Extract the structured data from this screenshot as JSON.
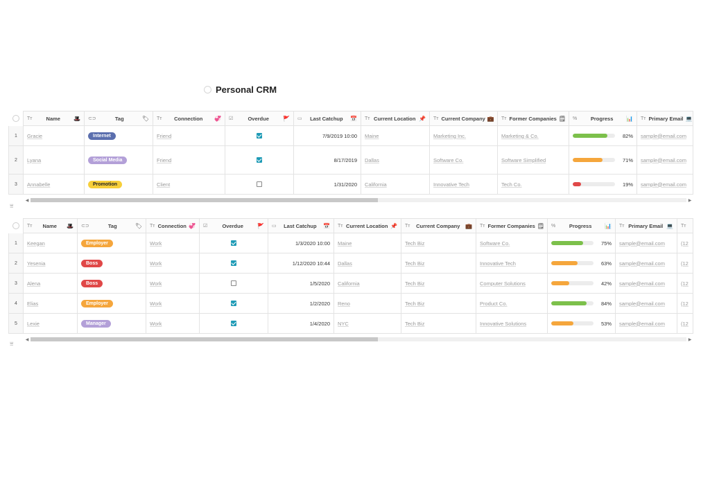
{
  "title": "Personal CRM",
  "table1": {
    "columns": [
      {
        "icon": "Tт",
        "label": "Name",
        "emoji": "🎩",
        "w": 88
      },
      {
        "icon": "⊂⊃",
        "label": "Tag",
        "emoji": "🏷",
        "w": 99
      },
      {
        "icon": "Tт",
        "label": "Connection",
        "emoji": "💞",
        "w": 104
      },
      {
        "icon": "☑",
        "label": "Overdue",
        "emoji": "🚩",
        "w": 99
      },
      {
        "icon": "▭",
        "label": "Last Catchup",
        "emoji": "📅",
        "w": 97
      },
      {
        "icon": "Tт",
        "label": "Current Location",
        "emoji": "📌",
        "w": 99
      },
      {
        "icon": "Tт",
        "label": "Current Company",
        "emoji": "💼",
        "w": 98
      },
      {
        "icon": "Tт",
        "label": "Former Companies",
        "emoji": "🗒",
        "w": 103
      },
      {
        "icon": "%",
        "label": "Progress",
        "emoji": "📊",
        "w": 98
      },
      {
        "icon": "Tт",
        "label": "Primary Email",
        "emoji": "💻",
        "w": 81
      }
    ],
    "rows": [
      {
        "idx": "1",
        "name": "Gracie",
        "tag": "Internet",
        "tag_color": "#5b6fae",
        "tag_text": "#ffffff",
        "connection": "Friend",
        "overdue": true,
        "catchup": "7/9/2019 10:00",
        "location": "Maine",
        "company": "Marketing Inc.",
        "former": "Marketing & Co.",
        "progress": 82,
        "progress_label": "82%",
        "progress_color": "#7cc04b",
        "email": "sample@email.com",
        "h": 29
      },
      {
        "idx": "2",
        "name": "Lyana",
        "tag": "Social Media",
        "tag_color": "#b3a0d8",
        "tag_text": "#ffffff",
        "connection": "Friend",
        "overdue": true,
        "catchup": "8/17/2019",
        "location": "Dallas",
        "company": "Software Co.",
        "former": "Software Simplified",
        "progress": 71,
        "progress_label": "71%",
        "progress_color": "#f5a63c",
        "email": "sample@email.com",
        "h": 41
      },
      {
        "idx": "3",
        "name": "Annabelle",
        "tag": "Promotion",
        "tag_color": "#f7cf3a",
        "tag_text": "#222222",
        "connection": "Client",
        "overdue": false,
        "catchup": "1/31/2020",
        "location": "California",
        "company": "Innovative Tech",
        "former": "Tech Co.",
        "progress": 19,
        "progress_label": "19%",
        "progress_color": "#e04848",
        "email": "sample@email.com",
        "h": 29
      }
    ]
  },
  "table2": {
    "columns": [
      {
        "icon": "Tт",
        "label": "Name",
        "emoji": "🎩",
        "w": 78
      },
      {
        "icon": "⊂⊃",
        "label": "Tag",
        "emoji": "🏷",
        "w": 99
      },
      {
        "icon": "Tт",
        "label": "Connection",
        "emoji": "💞",
        "w": 77
      },
      {
        "icon": "☑",
        "label": "Overdue",
        "emoji": "🚩",
        "w": 99
      },
      {
        "icon": "▭",
        "label": "Last Catchup",
        "emoji": "📅",
        "w": 95
      },
      {
        "icon": "Tт",
        "label": "Current Location",
        "emoji": "📌",
        "w": 97
      },
      {
        "icon": "Tт",
        "label": "Current Company",
        "emoji": "💼",
        "w": 108
      },
      {
        "icon": "Tт",
        "label": "Former Companies",
        "emoji": "🗒",
        "w": 103
      },
      {
        "icon": "%",
        "label": "Progress",
        "emoji": "📊",
        "w": 98
      },
      {
        "icon": "Tт",
        "label": "Primary Email",
        "emoji": "💻",
        "w": 89
      },
      {
        "icon": "Tт",
        "label": "",
        "emoji": "",
        "w": 23
      }
    ],
    "rows": [
      {
        "idx": "1",
        "name": "Keegan",
        "tag": "Employer",
        "tag_color": "#f5a63c",
        "tag_text": "#ffffff",
        "connection": "Work",
        "overdue": true,
        "catchup": "1/3/2020 10:00",
        "location": "Maine",
        "company": "Tech Biz",
        "former": "Software Co.",
        "progress": 75,
        "progress_label": "75%",
        "progress_color": "#7cc04b",
        "email": "sample@email.com",
        "extra": "(12",
        "h": 29
      },
      {
        "idx": "2",
        "name": "Yesenia",
        "tag": "Boss",
        "tag_color": "#e04848",
        "tag_text": "#ffffff",
        "connection": "Work",
        "overdue": true,
        "catchup": "1/12/2020 10:44",
        "location": "Dallas",
        "company": "Tech Biz",
        "former": "Innovative Tech",
        "progress": 63,
        "progress_label": "63%",
        "progress_color": "#f5a63c",
        "email": "sample@email.com",
        "extra": "(12",
        "h": 29
      },
      {
        "idx": "3",
        "name": "Alena",
        "tag": "Boss",
        "tag_color": "#e04848",
        "tag_text": "#ffffff",
        "connection": "Work",
        "overdue": false,
        "catchup": "1/5/2020",
        "location": "California",
        "company": "Tech Biz",
        "former": "Computer Solutions",
        "progress": 42,
        "progress_label": "42%",
        "progress_color": "#f5a63c",
        "email": "sample@email.com",
        "extra": "(12",
        "h": 29
      },
      {
        "idx": "4",
        "name": "Elias",
        "tag": "Employer",
        "tag_color": "#f5a63c",
        "tag_text": "#ffffff",
        "connection": "Work",
        "overdue": true,
        "catchup": "1/2/2020",
        "location": "Reno",
        "company": "Tech Biz",
        "former": "Product Co.",
        "progress": 84,
        "progress_label": "84%",
        "progress_color": "#7cc04b",
        "email": "sample@email.com",
        "extra": "(12",
        "h": 29
      },
      {
        "idx": "5",
        "name": "Lexie",
        "tag": "Manager",
        "tag_color": "#b3a0d8",
        "tag_text": "#ffffff",
        "connection": "Work",
        "overdue": true,
        "catchup": "1/4/2020",
        "location": "NYC",
        "company": "Tech Biz",
        "former": "Innovative Solutions",
        "progress": 53,
        "progress_label": "53%",
        "progress_color": "#f5a63c",
        "email": "sample@email.com",
        "extra": "(12",
        "h": 29
      }
    ]
  },
  "scrollbar1": {
    "thumb_fraction": 0.53
  },
  "scrollbar2": {
    "thumb_fraction": 0.53
  }
}
